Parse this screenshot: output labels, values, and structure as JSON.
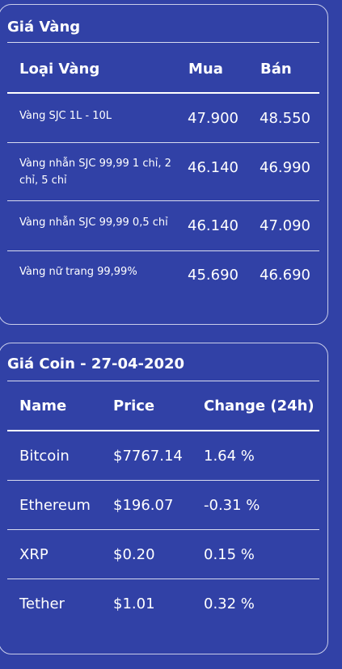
{
  "gold": {
    "title": "Giá Vàng",
    "headers": {
      "type": "Loại Vàng",
      "buy": "Mua",
      "sell": "Bán"
    },
    "rows": [
      {
        "name": "Vàng SJC 1L - 10L",
        "buy": "47.900",
        "sell": "48.550"
      },
      {
        "name": "Vàng nhẫn SJC 99,99 1 chỉ, 2 chỉ, 5 chỉ",
        "buy": "46.140",
        "sell": "46.990"
      },
      {
        "name": "Vàng nhẫn SJC 99,99 0,5 chỉ",
        "buy": "46.140",
        "sell": "47.090"
      },
      {
        "name": "Vàng nữ trang 99,99%",
        "buy": "45.690",
        "sell": "46.690"
      }
    ]
  },
  "coin": {
    "title": "Giá Coin - 27-04-2020",
    "headers": {
      "name": "Name",
      "price": "Price",
      "change": "Change (24h)"
    },
    "rows": [
      {
        "name": "Bitcoin",
        "price": "$7767.14",
        "change": "1.64 %"
      },
      {
        "name": "Ethereum",
        "price": "$196.07",
        "change": "-0.31 %"
      },
      {
        "name": "XRP",
        "price": "$0.20",
        "change": "0.15 %"
      },
      {
        "name": "Tether",
        "price": "$1.01",
        "change": "0.32 %"
      }
    ]
  },
  "colors": {
    "background": "#3141a6",
    "text": "#ffffff",
    "border": "#c9cdea"
  }
}
